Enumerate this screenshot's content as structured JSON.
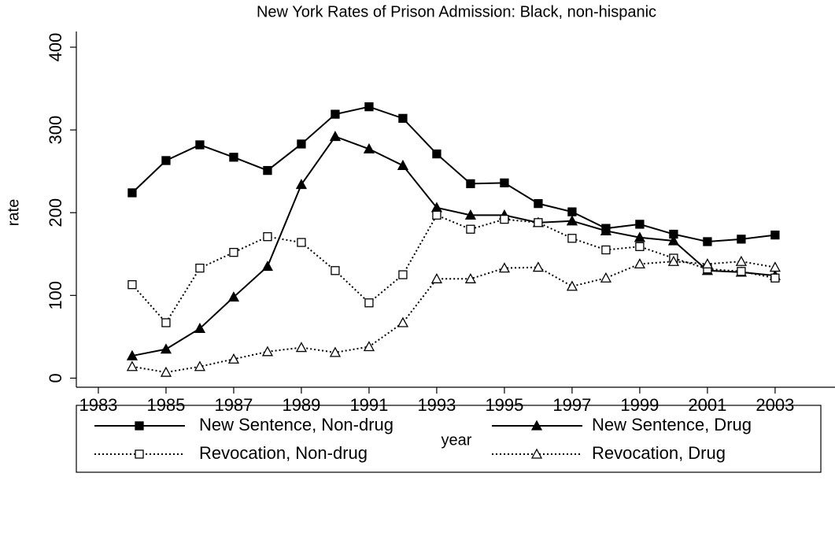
{
  "chart_data": {
    "type": "line",
    "title": "New York Rates of Prison Admission: Black, non-hispanic",
    "x_label": "year",
    "y_label": "rate",
    "x": [
      1984,
      1985,
      1986,
      1987,
      1988,
      1989,
      1990,
      1991,
      1992,
      1993,
      1994,
      1995,
      1996,
      1997,
      1998,
      1999,
      2000,
      2001,
      2002,
      2003
    ],
    "series": [
      {
        "name": "New Sentence, Non-drug",
        "color": "#000000",
        "dash": "solid",
        "marker": "square",
        "marker_fill": true,
        "values": [
          224,
          263,
          282,
          267,
          251,
          283,
          319,
          328,
          314,
          271,
          235,
          236,
          211,
          201,
          181,
          186,
          174,
          165,
          168,
          173
        ]
      },
      {
        "name": "New Sentence, Drug",
        "color": "#000000",
        "dash": "solid",
        "marker": "triangle",
        "marker_fill": true,
        "values": [
          27,
          35,
          60,
          98,
          135,
          234,
          292,
          277,
          257,
          206,
          197,
          197,
          188,
          190,
          178,
          170,
          166,
          130,
          128,
          124
        ]
      },
      {
        "name": "Revocation, Non-drug",
        "color": "#000000",
        "dash": "dotted",
        "marker": "square",
        "marker_fill": false,
        "values": [
          113,
          67,
          133,
          152,
          171,
          164,
          130,
          91,
          125,
          197,
          180,
          192,
          188,
          169,
          155,
          159,
          145,
          132,
          129,
          121
        ]
      },
      {
        "name": "Revocation, Drug",
        "color": "#000000",
        "dash": "dotted",
        "marker": "triangle",
        "marker_fill": false,
        "values": [
          14,
          7,
          14,
          23,
          32,
          37,
          31,
          38,
          67,
          120,
          120,
          133,
          134,
          111,
          121,
          138,
          141,
          138,
          141,
          134
        ]
      }
    ],
    "xlim": [
      1982.35,
      2004.77
    ],
    "xticks": [
      1983,
      1985,
      1987,
      1989,
      1991,
      1993,
      1995,
      1997,
      1999,
      2001,
      2003
    ],
    "ylim": [
      -11,
      419
    ],
    "yticks": [
      0,
      100,
      200,
      300,
      400
    ],
    "grid": false,
    "legend": "bottom"
  }
}
